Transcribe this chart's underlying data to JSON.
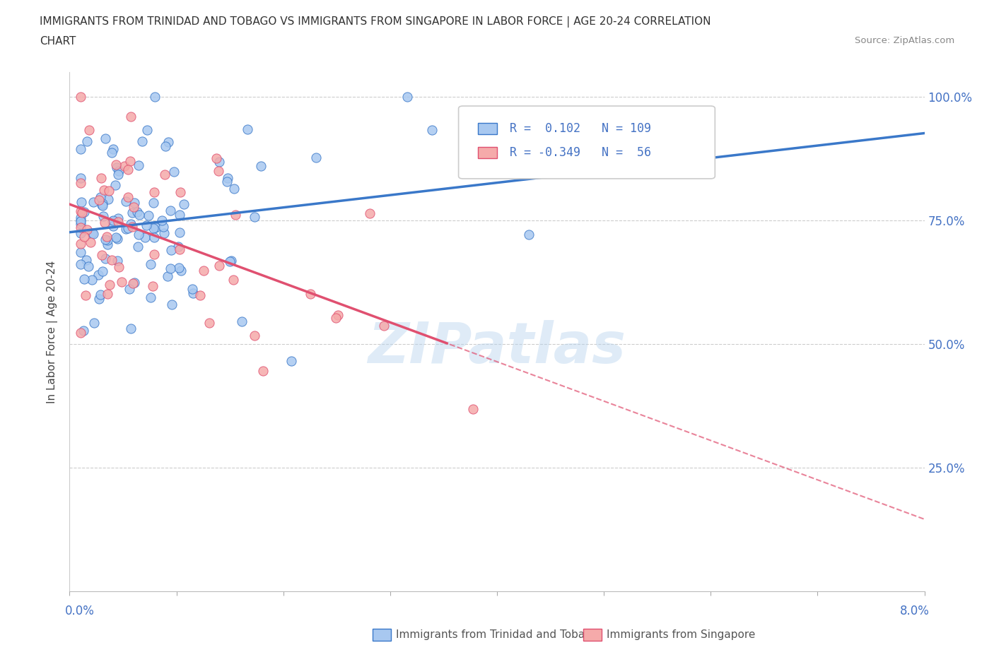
{
  "title_line1": "IMMIGRANTS FROM TRINIDAD AND TOBAGO VS IMMIGRANTS FROM SINGAPORE IN LABOR FORCE | AGE 20-24 CORRELATION",
  "title_line2": "CHART",
  "source": "Source: ZipAtlas.com",
  "ylabel": "In Labor Force | Age 20-24",
  "right_yticks": [
    "100.0%",
    "75.0%",
    "50.0%",
    "25.0%"
  ],
  "right_ytick_vals": [
    1.0,
    0.75,
    0.5,
    0.25
  ],
  "R_tt": 0.102,
  "N_tt": 109,
  "R_sg": -0.349,
  "N_sg": 56,
  "color_tt": "#A8C8F0",
  "color_sg": "#F5AAAA",
  "line_color_tt": "#3A78C9",
  "line_color_sg": "#E05070",
  "watermark": "ZIPatlas",
  "xmin": 0.0,
  "xmax": 0.08,
  "ymin": 0.0,
  "ymax": 1.05,
  "tt_intercept": 0.745,
  "tt_slope": 0.65,
  "sg_intercept": 0.755,
  "sg_slope": -7.0
}
